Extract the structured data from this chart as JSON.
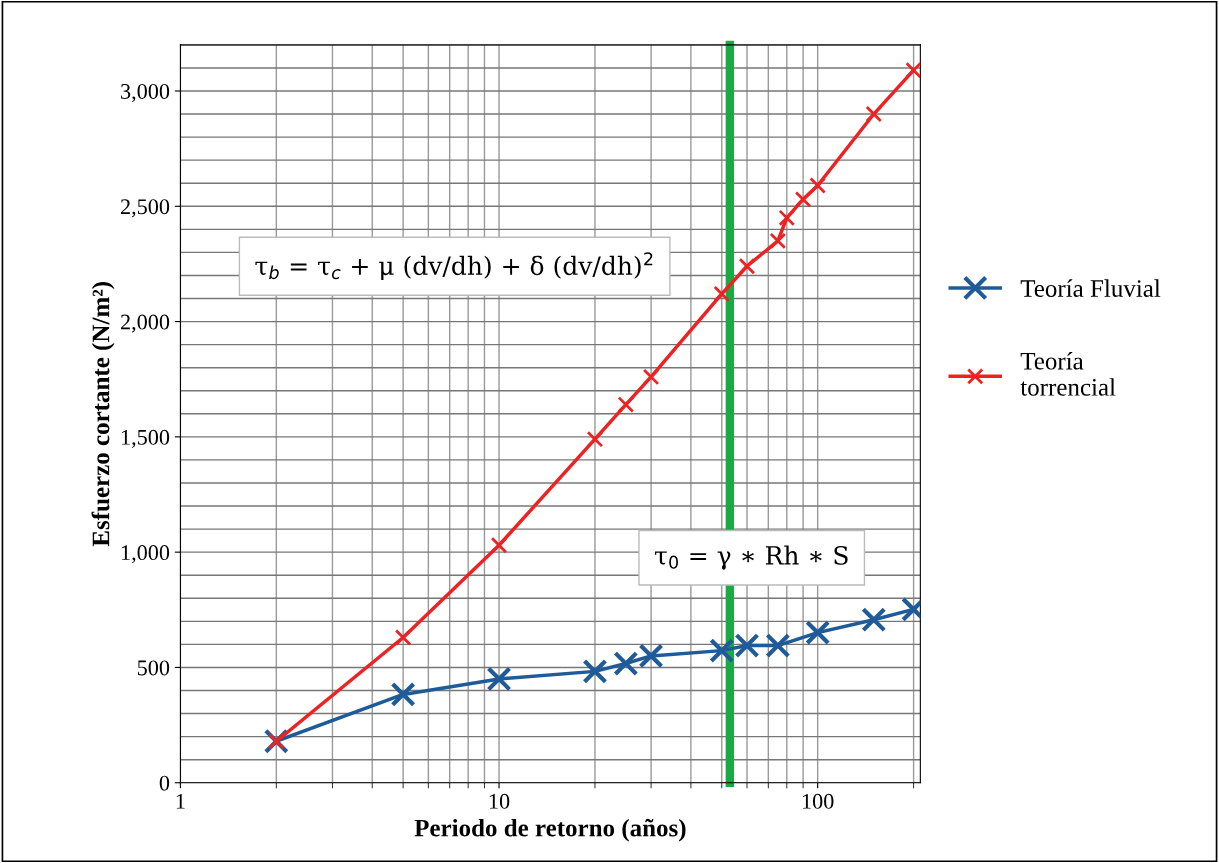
{
  "chart_data": {
    "type": "line",
    "xlabel": "Periodo de retorno (años)",
    "ylabel": "Esfuerzo cortante (N/m²)",
    "log": "x",
    "xlim": [
      1,
      210
    ],
    "xticks": [
      1,
      10,
      100
    ],
    "ylim": [
      0,
      3200
    ],
    "yticks": [
      0,
      {
        "value": 500,
        "label": "500"
      },
      {
        "value": 1000,
        "label": "1,000"
      },
      {
        "value": 1500,
        "label": "1,500"
      },
      {
        "value": 2000,
        "label": "2,000"
      },
      {
        "value": 2500,
        "label": "2,500"
      },
      {
        "value": 3000,
        "label": "3,000"
      }
    ],
    "grid": true,
    "legend": "right",
    "marker": "cross",
    "series": [
      {
        "name": "Teoría Fluvial",
        "color": "#1f5b99",
        "x": [
          2,
          5,
          10,
          20,
          25,
          30,
          50,
          60,
          75,
          100,
          150,
          200
        ],
        "values": [
          180,
          383,
          450,
          483,
          517,
          550,
          573,
          595,
          595,
          651,
          707,
          752
        ]
      },
      {
        "name": "Teoría torrencial",
        "color": "#ee2222",
        "x": [
          2,
          5,
          10,
          20,
          25,
          30,
          50,
          60,
          75,
          80,
          90,
          100,
          150,
          200
        ],
        "values": [
          180,
          630,
          1030,
          1490,
          1640,
          1760,
          2120,
          2240,
          2350,
          2450,
          2530,
          2590,
          2900,
          3090
        ]
      }
    ],
    "ref_lines": [
      {
        "axis": "x",
        "value": 53,
        "color": "#1aaa44"
      }
    ],
    "annotations": [
      "τ$_{b}$ = τ$_{c}$ + μ (dv/dh) + δ (dv/dh)$^{2}$",
      "τ$_{0}$ = γ ∗ Rh ∗ S"
    ]
  }
}
